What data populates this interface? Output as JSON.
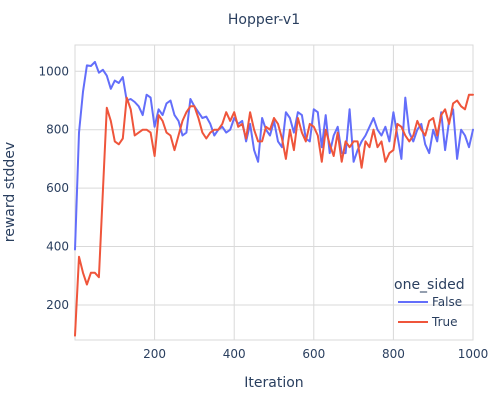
{
  "chart_data": {
    "type": "line",
    "title": "Hopper-v1",
    "xlabel": "Iteration",
    "ylabel": "reward stddev",
    "xlim": [
      0,
      1000
    ],
    "ylim": [
      80,
      1090
    ],
    "xticks": [
      200,
      400,
      600,
      800,
      1000
    ],
    "yticks": [
      200,
      400,
      600,
      800,
      1000
    ],
    "grid": true,
    "legend": {
      "title": "one_sided",
      "placement": "bottom-right"
    },
    "series": [
      {
        "name": "False",
        "color": "#636efa",
        "x": [
          0,
          10,
          20,
          30,
          40,
          50,
          60,
          70,
          80,
          90,
          100,
          110,
          120,
          130,
          140,
          150,
          160,
          170,
          180,
          190,
          200,
          210,
          220,
          230,
          240,
          250,
          260,
          270,
          280,
          290,
          300,
          310,
          320,
          330,
          340,
          350,
          360,
          370,
          380,
          390,
          400,
          410,
          420,
          430,
          440,
          450,
          460,
          470,
          480,
          490,
          500,
          510,
          520,
          530,
          540,
          550,
          560,
          570,
          580,
          590,
          600,
          610,
          620,
          630,
          640,
          650,
          660,
          670,
          680,
          690,
          700,
          710,
          720,
          730,
          740,
          750,
          760,
          770,
          780,
          790,
          800,
          810,
          820,
          830,
          840,
          850,
          860,
          870,
          880,
          890,
          900,
          910,
          920,
          930,
          940,
          950,
          960,
          970,
          980,
          990,
          1000
        ],
        "y": [
          390,
          790,
          930,
          1020,
          1018,
          1032,
          995,
          1005,
          985,
          940,
          968,
          960,
          980,
          900,
          905,
          895,
          880,
          850,
          920,
          910,
          810,
          870,
          850,
          890,
          900,
          850,
          830,
          780,
          790,
          905,
          880,
          860,
          840,
          845,
          820,
          780,
          800,
          810,
          790,
          800,
          840,
          820,
          830,
          760,
          820,
          730,
          690,
          840,
          800,
          780,
          830,
          760,
          740,
          860,
          840,
          790,
          860,
          850,
          770,
          760,
          870,
          860,
          740,
          850,
          720,
          780,
          810,
          720,
          720,
          870,
          690,
          730,
          760,
          780,
          810,
          840,
          800,
          780,
          810,
          760,
          860,
          780,
          700,
          910,
          790,
          760,
          800,
          820,
          750,
          720,
          800,
          760,
          860,
          730,
          830,
          870,
          700,
          800,
          780,
          740,
          800
        ]
      },
      {
        "name": "True",
        "color": "#ef553b",
        "x": [
          0,
          10,
          20,
          30,
          40,
          50,
          60,
          70,
          80,
          90,
          100,
          110,
          120,
          130,
          140,
          150,
          160,
          170,
          180,
          190,
          200,
          210,
          220,
          230,
          240,
          250,
          260,
          270,
          280,
          290,
          300,
          310,
          320,
          330,
          340,
          350,
          360,
          370,
          380,
          390,
          400,
          410,
          420,
          430,
          440,
          450,
          460,
          470,
          480,
          490,
          500,
          510,
          520,
          530,
          540,
          550,
          560,
          570,
          580,
          590,
          600,
          610,
          620,
          630,
          640,
          650,
          660,
          670,
          680,
          690,
          700,
          710,
          720,
          730,
          740,
          750,
          760,
          770,
          780,
          790,
          800,
          810,
          820,
          830,
          840,
          850,
          860,
          870,
          880,
          890,
          900,
          910,
          920,
          930,
          940,
          950,
          960,
          970,
          980,
          990,
          1000
        ],
        "y": [
          95,
          365,
          310,
          270,
          310,
          310,
          295,
          590,
          875,
          830,
          760,
          750,
          770,
          910,
          870,
          780,
          790,
          800,
          800,
          790,
          710,
          850,
          830,
          790,
          780,
          730,
          780,
          830,
          860,
          880,
          880,
          840,
          790,
          770,
          790,
          800,
          800,
          820,
          860,
          830,
          860,
          810,
          820,
          770,
          860,
          800,
          760,
          760,
          810,
          800,
          840,
          820,
          770,
          700,
          800,
          730,
          840,
          790,
          760,
          820,
          810,
          780,
          690,
          800,
          750,
          710,
          790,
          690,
          760,
          740,
          760,
          760,
          670,
          760,
          740,
          800,
          740,
          760,
          690,
          720,
          730,
          820,
          810,
          780,
          760,
          780,
          830,
          800,
          780,
          830,
          840,
          780,
          850,
          870,
          820,
          890,
          900,
          880,
          870,
          920,
          920
        ]
      }
    ]
  }
}
